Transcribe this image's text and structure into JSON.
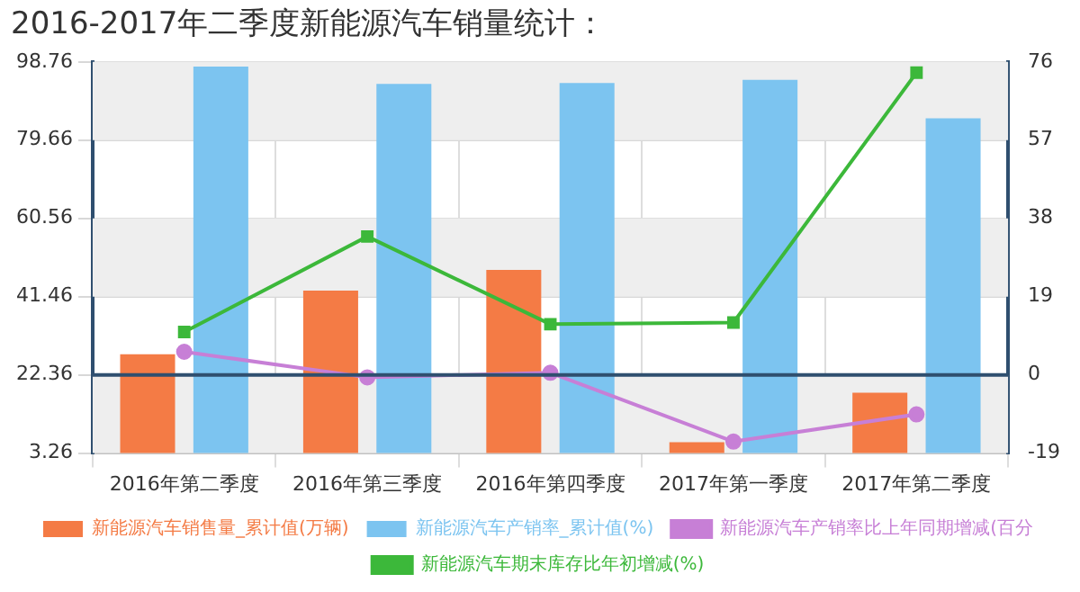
{
  "chart_data": {
    "type": "bar",
    "title": "2016-2017年二季度新能源汽车销量统计：",
    "categories": [
      "2016年第二季度",
      "2016年第三季度",
      "2016年第四季度",
      "2017年第一季度",
      "2017年第二季度"
    ],
    "series": [
      {
        "name": "新能源汽车销售量_累计值(万辆)",
        "color": "#f47b45",
        "values": [
          27.4,
          42.9,
          48.0,
          5.9,
          18.0
        ]
      },
      {
        "name": "新能源汽车产销率_累计值(%)",
        "color": "#7cc4f0",
        "values": [
          97.6,
          93.4,
          93.6,
          94.4,
          85.0
        ]
      },
      {
        "name": "新能源汽车产销率比上年同期增减(百分",
        "type": "line",
        "axis": "y2",
        "marker": "circle",
        "color": "#c77fd6",
        "values": [
          5.6,
          -0.6,
          0.5,
          -16.2,
          -9.6
        ]
      },
      {
        "name": "新能源汽车期末库存比年初增减(%)",
        "type": "line",
        "axis": "y2",
        "marker": "square",
        "color": "#3cb83a",
        "values": [
          10.4,
          33.6,
          12.3,
          12.7,
          73.4
        ]
      }
    ],
    "ylim": [
      3.26,
      98.76
    ],
    "yticks": [
      3.26,
      22.36,
      41.46,
      60.56,
      79.66,
      98.76
    ],
    "y2lim": [
      -19,
      76
    ],
    "y2ticks": [
      -19,
      0,
      19,
      38,
      57,
      76
    ],
    "ref_lines": [
      {
        "axis": "y2",
        "value": 0,
        "color": "#2f4f6f"
      }
    ],
    "grid": true,
    "legend": "bottom"
  }
}
